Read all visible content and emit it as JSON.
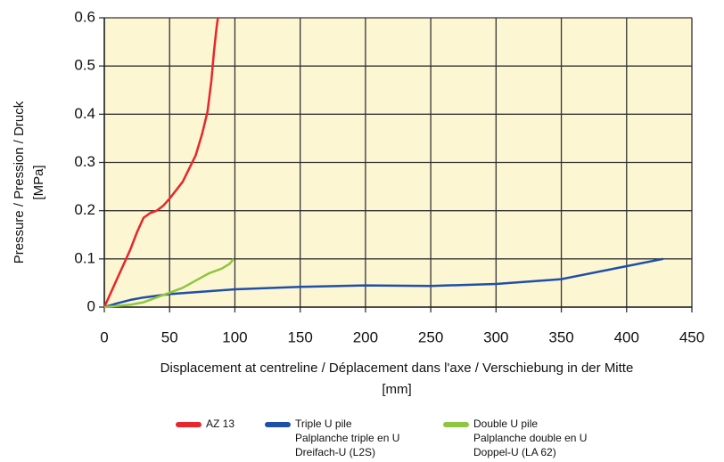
{
  "chart_data": {
    "type": "line",
    "xlabel": [
      "Displacement at centreline / Déplacement dans l'axe / Verschiebung in der Mitte",
      "[mm]"
    ],
    "ylabel": [
      "Pressure / Pression / Druck",
      "[MPa]"
    ],
    "xlim": [
      0,
      450
    ],
    "xticks": [
      0,
      50,
      100,
      150,
      200,
      250,
      300,
      350,
      400,
      450
    ],
    "ylim": [
      0,
      0.6
    ],
    "yticks": [
      0,
      0.1,
      0.2,
      0.3,
      0.4,
      0.5,
      0.6
    ],
    "grid": true,
    "background": "#fdf6d3",
    "series": [
      {
        "name": [
          "AZ 13"
        ],
        "color": "#e8262b",
        "x": [
          0,
          5,
          10,
          15,
          20,
          25,
          30,
          35,
          40,
          45,
          50,
          60,
          70,
          75,
          79,
          82,
          84,
          86,
          87
        ],
        "values": [
          0,
          0.03,
          0.06,
          0.09,
          0.12,
          0.155,
          0.185,
          0.195,
          0.2,
          0.21,
          0.225,
          0.26,
          0.315,
          0.36,
          0.405,
          0.47,
          0.53,
          0.58,
          0.6
        ]
      },
      {
        "name": [
          "Triple U pile",
          "Palplanche triple en U",
          "Dreifach-U (L2S)"
        ],
        "color": "#1f4fa8",
        "x": [
          0,
          10,
          20,
          30,
          50,
          100,
          150,
          200,
          250,
          300,
          350,
          400,
          428
        ],
        "values": [
          0,
          0.008,
          0.015,
          0.02,
          0.027,
          0.037,
          0.042,
          0.045,
          0.044,
          0.048,
          0.058,
          0.085,
          0.1
        ]
      },
      {
        "name": [
          "Double U pile",
          "Palplanche double en U",
          "Doppel-U (LA 62)"
        ],
        "color": "#8dc63f",
        "x": [
          0,
          20,
          30,
          40,
          50,
          60,
          70,
          80,
          90,
          96,
          99
        ],
        "values": [
          0,
          0.005,
          0.01,
          0.02,
          0.03,
          0.04,
          0.055,
          0.07,
          0.08,
          0.09,
          0.1
        ]
      }
    ]
  }
}
